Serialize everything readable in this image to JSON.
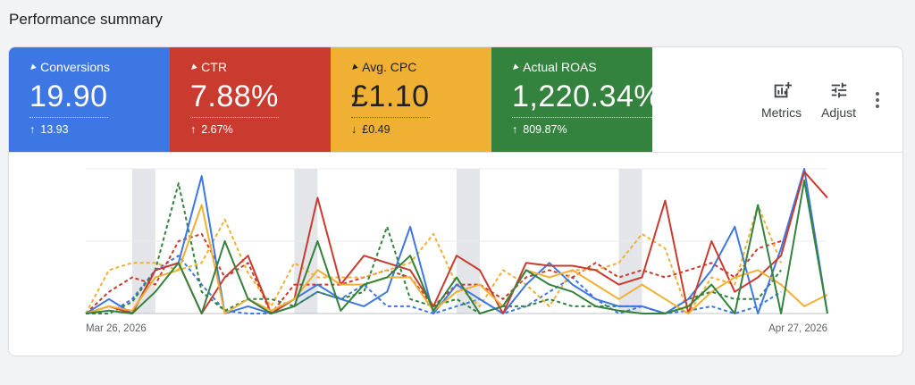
{
  "page_title": "Performance summary",
  "metrics": [
    {
      "label": "Conversions",
      "value": "19.90",
      "delta_arrow": "↑",
      "delta": "13.93",
      "color": "#3d77e3"
    },
    {
      "label": "CTR",
      "value": "7.88%",
      "delta_arrow": "↑",
      "delta": "2.67%",
      "color": "#c93b2e"
    },
    {
      "label": "Avg. CPC",
      "value": "£1.10",
      "delta_arrow": "↓",
      "delta": "£0.49",
      "color": "#efb034"
    },
    {
      "label": "Actual ROAS",
      "value": "1,220.34%",
      "delta_arrow": "↑",
      "delta": "809.87%",
      "color": "#33823d"
    }
  ],
  "actions": {
    "metrics_label": "Metrics",
    "adjust_label": "Adjust",
    "metrics_icon": "add-chart-icon",
    "adjust_icon": "tune-sliders-icon",
    "more_icon": "more-vert-icon"
  },
  "chart_data": {
    "type": "line",
    "x_start_label": "Mar 26, 2026",
    "x_end_label": "Apr 27, 2026",
    "points": 33,
    "y_scale": "normalized 0-1 per series",
    "weekend_bands": [
      [
        2,
        3
      ],
      [
        9,
        10
      ],
      [
        16,
        17
      ],
      [
        23,
        24
      ]
    ],
    "series": [
      {
        "color": "#3d77e3",
        "style": "solid",
        "values": [
          0,
          0.1,
          0,
          0.3,
          0.35,
          0.95,
          0,
          0.05,
          0,
          0.1,
          0.2,
          0.1,
          0.05,
          0.15,
          0.6,
          0,
          0.2,
          0.1,
          0,
          0.2,
          0.35,
          0.2,
          0.1,
          0.05,
          0.05,
          0,
          0.1,
          0.3,
          0.6,
          0,
          0.45,
          1,
          0
        ]
      },
      {
        "color": "#3d77e3",
        "style": "dashed",
        "values": [
          0,
          0,
          0.1,
          0.3,
          0.4,
          0.2,
          0.02,
          0,
          0,
          0.05,
          0.15,
          0.1,
          0.2,
          0.05,
          0.05,
          0,
          0.05,
          0.1,
          0,
          0.05,
          0.15,
          0.25,
          0.1,
          0,
          0.05,
          0,
          0.02,
          0.05,
          0,
          0.05,
          0.15,
          null,
          null
        ]
      },
      {
        "color": "#c93b2e",
        "style": "solid",
        "values": [
          0,
          0.05,
          0,
          0.3,
          0.35,
          0,
          0.25,
          0.4,
          0,
          0.1,
          0.8,
          0.2,
          0.4,
          0.35,
          0.3,
          0.05,
          0.4,
          0.3,
          0,
          0.35,
          0.33,
          0.33,
          0.3,
          0.2,
          0.25,
          0.78,
          0,
          0.5,
          0.15,
          0.25,
          0.4,
          0.98,
          0.8
        ]
      },
      {
        "color": "#c93b2e",
        "style": "dashed",
        "values": [
          0,
          0.15,
          0.25,
          0.2,
          0.5,
          0.55,
          0.25,
          0.35,
          0,
          0.2,
          0.2,
          0.2,
          0.25,
          0.3,
          0.25,
          0.05,
          0.2,
          0.2,
          0.1,
          0.25,
          0.3,
          0.25,
          0.35,
          0.25,
          0.3,
          0.25,
          0.3,
          0.35,
          0.25,
          0.45,
          0.5,
          null,
          null
        ]
      },
      {
        "color": "#efb034",
        "style": "solid",
        "values": [
          0,
          0.05,
          0.02,
          0.25,
          0.3,
          0.75,
          0,
          0.1,
          0.02,
          0.1,
          0.3,
          0.2,
          0.2,
          0.25,
          0.25,
          0.02,
          0.15,
          0.2,
          0.05,
          0.3,
          0.25,
          0.3,
          0.2,
          0.1,
          0.2,
          0.1,
          0,
          0.15,
          0.25,
          0.3,
          0.2,
          0.05,
          0.13
        ]
      },
      {
        "color": "#efb034",
        "style": "dashed",
        "values": [
          0,
          0.3,
          0.35,
          0.35,
          0.3,
          0.35,
          0.65,
          0.28,
          0.05,
          0.35,
          0.25,
          0.25,
          0.25,
          0.3,
          0.35,
          0.55,
          0.2,
          0.05,
          0.3,
          0.2,
          0.05,
          0.3,
          0.3,
          0.35,
          0.55,
          0.45,
          0,
          0.25,
          0.2,
          0.75,
          0.35,
          null,
          null
        ]
      },
      {
        "color": "#33823d",
        "style": "solid",
        "values": [
          0,
          0.02,
          0,
          0.15,
          0.35,
          0,
          0.5,
          0.1,
          0,
          0.05,
          0.5,
          0.02,
          0.2,
          0.25,
          0.4,
          0.02,
          0.25,
          0,
          0.05,
          0.3,
          0.2,
          0.15,
          0.05,
          0.02,
          0,
          0,
          0.05,
          0.2,
          0,
          0.75,
          0,
          0.92,
          0
        ]
      },
      {
        "color": "#33823d",
        "style": "dashed",
        "values": [
          0,
          0,
          0.08,
          0.3,
          0.9,
          0.15,
          0.02,
          0.1,
          0.1,
          0.05,
          0.15,
          0.1,
          0.15,
          0.6,
          0.1,
          0.05,
          0.1,
          0,
          0.05,
          0.05,
          0.1,
          0.05,
          0.05,
          0.05,
          0.05,
          0,
          0.1,
          0.15,
          0.1,
          0.1,
          0.3,
          null,
          null
        ]
      }
    ]
  }
}
